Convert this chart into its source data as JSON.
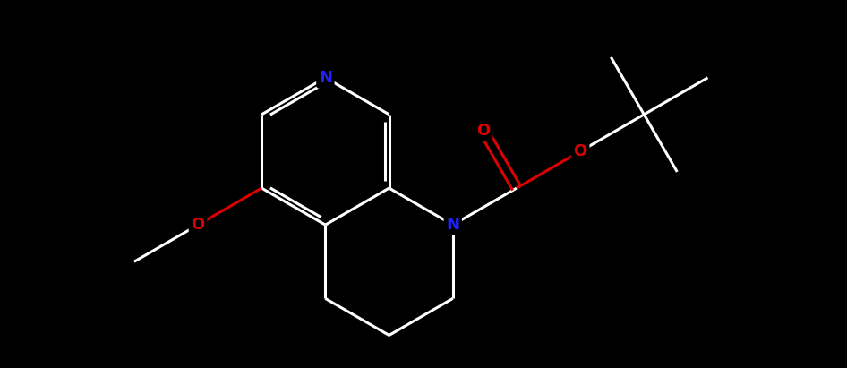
{
  "bg_color": "#000000",
  "bond_color": "#ffffff",
  "N_color": "#2222ff",
  "O_color": "#dd0000",
  "lw": 2.2,
  "label_fs": 13,
  "xlim": [
    0,
    10
  ],
  "ylim": [
    0,
    4.5
  ]
}
